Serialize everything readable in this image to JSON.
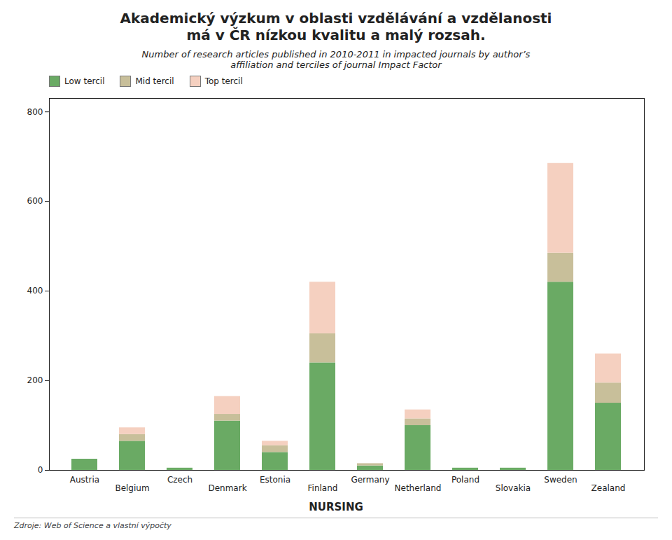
{
  "chart_data": {
    "type": "bar",
    "title": "Akademický výzkum v oblasti vzdělávání a vzdělanosti\nmá v ČR nízkou kvalitu a malý rozsah.",
    "subtitle": "Number of research articles published in 2010‑2011 in impacted journals by author’s\naffiliation and terciles of journal Impact Factor",
    "xlabel": "NURSING",
    "annotations": [
      "Zdroje: Web of Science a vlastní výpočty"
    ],
    "categories": [
      "Austria",
      "Belgium",
      "Czech",
      "Denmark",
      "Estonia",
      "Finland",
      "Germany",
      "Netherland",
      "Poland",
      "Slovakia",
      "Sweden",
      "Zealand"
    ],
    "series": [
      {
        "name": "Low tercil",
        "color": "#6aaa64",
        "values": [
          25,
          65,
          5,
          110,
          40,
          240,
          10,
          100,
          5,
          5,
          420,
          150
        ]
      },
      {
        "name": "Mid tercil",
        "color": "#c8bf9a",
        "values": [
          0,
          15,
          0,
          15,
          15,
          65,
          5,
          15,
          0,
          0,
          65,
          45
        ]
      },
      {
        "name": "Top tercil",
        "color": "#f5d0c0",
        "values": [
          0,
          15,
          0,
          40,
          10,
          115,
          0,
          20,
          0,
          0,
          200,
          65
        ]
      }
    ],
    "stacked": true,
    "ylim": [
      0,
      830
    ],
    "yticks": [
      0,
      200,
      400,
      600,
      800
    ],
    "grid": false,
    "legend": "upper left"
  }
}
